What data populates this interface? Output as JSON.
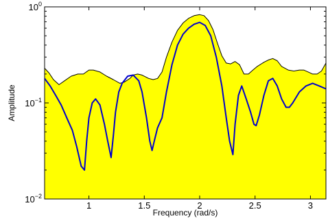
{
  "chart_data": {
    "type": "area",
    "xlabel": "Frequency (rad/s)",
    "ylabel": "Amplitude",
    "xlim": [
      0.6,
      3.14
    ],
    "ylim": [
      0.01,
      1
    ],
    "yscale": "log",
    "grid": false,
    "legend": "none",
    "x_ticks": [
      {
        "value": 1,
        "label": "1"
      },
      {
        "value": 1.5,
        "label": "1.5"
      },
      {
        "value": 2,
        "label": "2"
      },
      {
        "value": 2.5,
        "label": "2.5"
      },
      {
        "value": 3,
        "label": "3"
      }
    ],
    "y_ticks": [
      {
        "value": 0.01,
        "base": "10",
        "exp": "−2"
      },
      {
        "value": 0.1,
        "base": "10",
        "exp": "−1"
      },
      {
        "value": 1,
        "base": "10",
        "exp": "0"
      }
    ],
    "colors": {
      "fill": "#ffff00",
      "envelope": "#000000",
      "spectrum": "#0000cc"
    },
    "series": [
      {
        "role": "envelope",
        "style": "black line with yellow fill below",
        "x": [
          0.6,
          0.64,
          0.68,
          0.73,
          0.78,
          0.84,
          0.9,
          0.95,
          1.0,
          1.04,
          1.1,
          1.16,
          1.22,
          1.28,
          1.32,
          1.37,
          1.4,
          1.44,
          1.48,
          1.54,
          1.58,
          1.62,
          1.66,
          1.7,
          1.75,
          1.8,
          1.85,
          1.9,
          1.95,
          2.0,
          2.04,
          2.08,
          2.12,
          2.16,
          2.2,
          2.24,
          2.28,
          2.32,
          2.36,
          2.4,
          2.44,
          2.48,
          2.52,
          2.58,
          2.62,
          2.66,
          2.7,
          2.74,
          2.8,
          2.85,
          2.9,
          2.94,
          2.98,
          3.02,
          3.06,
          3.1,
          3.14
        ],
        "y": [
          0.23,
          0.205,
          0.175,
          0.155,
          0.17,
          0.19,
          0.2,
          0.2,
          0.22,
          0.22,
          0.21,
          0.19,
          0.175,
          0.16,
          0.165,
          0.18,
          0.195,
          0.2,
          0.195,
          0.18,
          0.175,
          0.18,
          0.21,
          0.3,
          0.43,
          0.57,
          0.68,
          0.76,
          0.81,
          0.83,
          0.81,
          0.72,
          0.58,
          0.42,
          0.31,
          0.26,
          0.255,
          0.27,
          0.25,
          0.2,
          0.2,
          0.22,
          0.24,
          0.265,
          0.28,
          0.29,
          0.275,
          0.24,
          0.22,
          0.215,
          0.22,
          0.22,
          0.21,
          0.2,
          0.2,
          0.215,
          0.26
        ]
      },
      {
        "role": "spectrum",
        "style": "blue line",
        "x": [
          0.6,
          0.65,
          0.7,
          0.75,
          0.8,
          0.85,
          0.89,
          0.93,
          0.96,
          0.98,
          1.0,
          1.03,
          1.06,
          1.1,
          1.14,
          1.17,
          1.2,
          1.22,
          1.24,
          1.27,
          1.3,
          1.35,
          1.4,
          1.45,
          1.48,
          1.52,
          1.55,
          1.57,
          1.59,
          1.62,
          1.66,
          1.7,
          1.75,
          1.8,
          1.85,
          1.9,
          1.95,
          2.0,
          2.05,
          2.1,
          2.15,
          2.2,
          2.24,
          2.27,
          2.3,
          2.32,
          2.35,
          2.38,
          2.42,
          2.46,
          2.49,
          2.51,
          2.54,
          2.58,
          2.62,
          2.66,
          2.7,
          2.74,
          2.78,
          2.81,
          2.84,
          2.9,
          2.96,
          3.02,
          3.08,
          3.14
        ],
        "y": [
          0.18,
          0.15,
          0.12,
          0.095,
          0.07,
          0.052,
          0.035,
          0.022,
          0.02,
          0.04,
          0.07,
          0.1,
          0.11,
          0.095,
          0.06,
          0.04,
          0.027,
          0.045,
          0.08,
          0.13,
          0.16,
          0.19,
          0.195,
          0.17,
          0.13,
          0.07,
          0.04,
          0.032,
          0.04,
          0.055,
          0.07,
          0.13,
          0.25,
          0.4,
          0.52,
          0.6,
          0.66,
          0.69,
          0.64,
          0.5,
          0.3,
          0.15,
          0.07,
          0.04,
          0.029,
          0.06,
          0.12,
          0.15,
          0.11,
          0.08,
          0.06,
          0.058,
          0.075,
          0.12,
          0.17,
          0.18,
          0.15,
          0.11,
          0.09,
          0.09,
          0.1,
          0.13,
          0.15,
          0.16,
          0.15,
          0.14
        ]
      }
    ]
  }
}
